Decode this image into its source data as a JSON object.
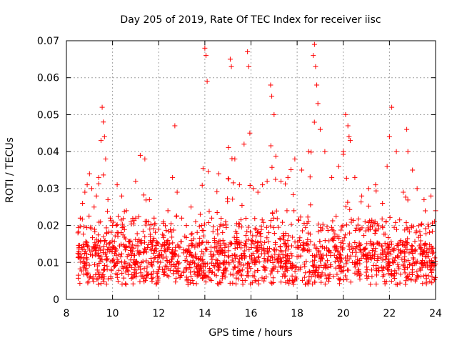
{
  "chart_data": {
    "type": "scatter",
    "title": "Day 205 of 2019, Rate Of TEC Index for receiver iisc",
    "xlabel": "GPS time / hours",
    "ylabel": "ROTI / TECUs",
    "xlim": [
      8,
      24
    ],
    "ylim": [
      0,
      0.07
    ],
    "x_ticks": [
      8,
      10,
      12,
      14,
      16,
      18,
      20,
      22,
      24
    ],
    "x_tick_labels": [
      "8",
      "10",
      "12",
      "14",
      "16",
      "18",
      "20",
      "22",
      "24"
    ],
    "y_ticks": [
      0,
      0.01,
      0.02,
      0.03,
      0.04,
      0.05,
      0.06,
      0.07
    ],
    "y_tick_labels": [
      "0",
      "0.01",
      "0.02",
      "0.03",
      "0.04",
      "0.05",
      "0.06",
      "0.07"
    ],
    "grid": true,
    "marker": "plus",
    "color": "#ff0000",
    "series": [
      {
        "name": "ROTI",
        "x": [
          8.5,
          8.6,
          8.7,
          8.8,
          8.9,
          9.0,
          9.1,
          9.2,
          9.3,
          9.4,
          9.5,
          9.55,
          9.6,
          9.65,
          9.7,
          9.8,
          9.9,
          10.0,
          10.2,
          10.4,
          10.6,
          10.8,
          11.0,
          11.2,
          11.4,
          11.6,
          11.8,
          12.0,
          12.2,
          12.4,
          12.6,
          12.7,
          12.8,
          13.0,
          13.2,
          13.4,
          13.6,
          13.8,
          14.0,
          14.05,
          14.1,
          14.3,
          14.6,
          14.9,
          15.1,
          15.15,
          15.3,
          15.5,
          15.7,
          15.85,
          15.9,
          15.95,
          16.1,
          16.3,
          16.5,
          16.7,
          16.85,
          16.9,
          17.0,
          17.3,
          17.6,
          17.9,
          18.2,
          18.5,
          18.7,
          18.75,
          18.8,
          18.85,
          18.9,
          19.0,
          19.2,
          19.5,
          19.8,
          20.0,
          20.1,
          20.2,
          20.25,
          20.3,
          20.5,
          20.8,
          21.1,
          21.4,
          21.7,
          21.9,
          22.0,
          22.1,
          22.3,
          22.6,
          22.75,
          22.8,
          23.0,
          23.2,
          23.5,
          23.8,
          24.0
        ],
        "y": [
          0.018,
          0.022,
          0.026,
          0.029,
          0.031,
          0.034,
          0.03,
          0.025,
          0.028,
          0.033,
          0.043,
          0.052,
          0.048,
          0.044,
          0.038,
          0.027,
          0.022,
          0.02,
          0.031,
          0.028,
          0.024,
          0.021,
          0.032,
          0.039,
          0.038,
          0.027,
          0.022,
          0.019,
          0.021,
          0.024,
          0.033,
          0.047,
          0.029,
          0.022,
          0.02,
          0.025,
          0.021,
          0.023,
          0.068,
          0.066,
          0.059,
          0.022,
          0.034,
          0.021,
          0.065,
          0.063,
          0.038,
          0.031,
          0.042,
          0.067,
          0.063,
          0.045,
          0.03,
          0.029,
          0.031,
          0.032,
          0.058,
          0.055,
          0.05,
          0.032,
          0.033,
          0.038,
          0.035,
          0.04,
          0.066,
          0.069,
          0.063,
          0.058,
          0.053,
          0.046,
          0.04,
          0.033,
          0.036,
          0.04,
          0.05,
          0.047,
          0.044,
          0.043,
          0.033,
          0.028,
          0.03,
          0.031,
          0.026,
          0.036,
          0.044,
          0.052,
          0.04,
          0.029,
          0.046,
          0.04,
          0.035,
          0.03,
          0.027,
          0.028,
          0.024
        ]
      }
    ]
  }
}
